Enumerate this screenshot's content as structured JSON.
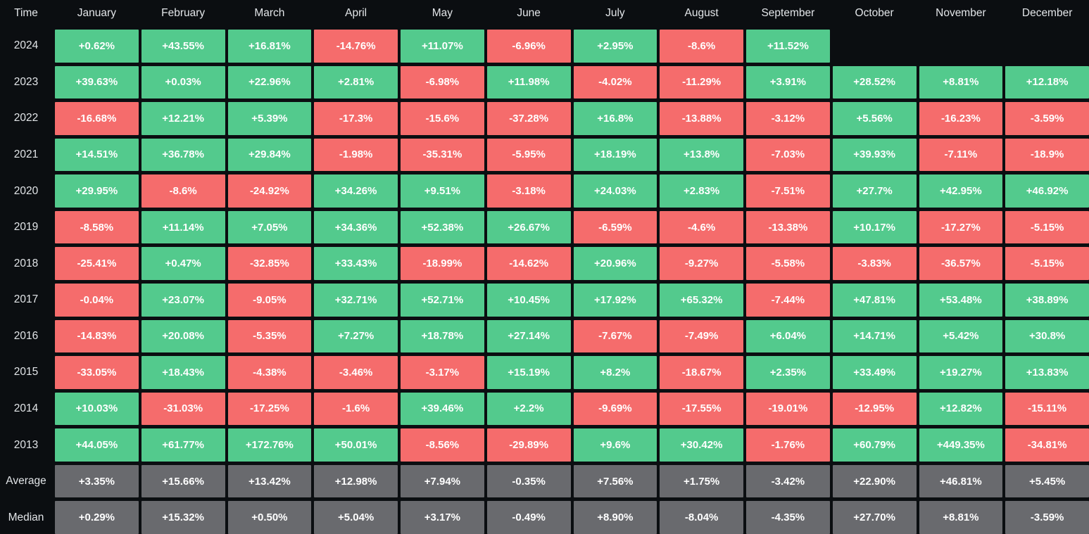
{
  "header": {
    "time_label": "Time",
    "months": [
      "January",
      "February",
      "March",
      "April",
      "May",
      "June",
      "July",
      "August",
      "September",
      "October",
      "November",
      "December"
    ]
  },
  "colors": {
    "background": "#0b0e11",
    "positive": "#53ca8d",
    "negative": "#f56c6c",
    "summary": "#696a6e",
    "cell_text": "#ffffff",
    "header_text": "#e2e5e8"
  },
  "chart_data": {
    "type": "heatmap",
    "value_unit": "percent_monthly_return",
    "columns": [
      "January",
      "February",
      "March",
      "April",
      "May",
      "June",
      "July",
      "August",
      "September",
      "October",
      "November",
      "December"
    ],
    "rows": [
      {
        "label": "2024",
        "kind": "year",
        "values": [
          "+0.62%",
          "+43.55%",
          "+16.81%",
          "-14.76%",
          "+11.07%",
          "-6.96%",
          "+2.95%",
          "-8.6%",
          "+11.52%",
          null,
          null,
          null
        ]
      },
      {
        "label": "2023",
        "kind": "year",
        "values": [
          "+39.63%",
          "+0.03%",
          "+22.96%",
          "+2.81%",
          "-6.98%",
          "+11.98%",
          "-4.02%",
          "-11.29%",
          "+3.91%",
          "+28.52%",
          "+8.81%",
          "+12.18%"
        ]
      },
      {
        "label": "2022",
        "kind": "year",
        "values": [
          "-16.68%",
          "+12.21%",
          "+5.39%",
          "-17.3%",
          "-15.6%",
          "-37.28%",
          "+16.8%",
          "-13.88%",
          "-3.12%",
          "+5.56%",
          "-16.23%",
          "-3.59%"
        ]
      },
      {
        "label": "2021",
        "kind": "year",
        "values": [
          "+14.51%",
          "+36.78%",
          "+29.84%",
          "-1.98%",
          "-35.31%",
          "-5.95%",
          "+18.19%",
          "+13.8%",
          "-7.03%",
          "+39.93%",
          "-7.11%",
          "-18.9%"
        ]
      },
      {
        "label": "2020",
        "kind": "year",
        "values": [
          "+29.95%",
          "-8.6%",
          "-24.92%",
          "+34.26%",
          "+9.51%",
          "-3.18%",
          "+24.03%",
          "+2.83%",
          "-7.51%",
          "+27.7%",
          "+42.95%",
          "+46.92%"
        ]
      },
      {
        "label": "2019",
        "kind": "year",
        "values": [
          "-8.58%",
          "+11.14%",
          "+7.05%",
          "+34.36%",
          "+52.38%",
          "+26.67%",
          "-6.59%",
          "-4.6%",
          "-13.38%",
          "+10.17%",
          "-17.27%",
          "-5.15%"
        ]
      },
      {
        "label": "2018",
        "kind": "year",
        "values": [
          "-25.41%",
          "+0.47%",
          "-32.85%",
          "+33.43%",
          "-18.99%",
          "-14.62%",
          "+20.96%",
          "-9.27%",
          "-5.58%",
          "-3.83%",
          "-36.57%",
          "-5.15%"
        ]
      },
      {
        "label": "2017",
        "kind": "year",
        "values": [
          "-0.04%",
          "+23.07%",
          "-9.05%",
          "+32.71%",
          "+52.71%",
          "+10.45%",
          "+17.92%",
          "+65.32%",
          "-7.44%",
          "+47.81%",
          "+53.48%",
          "+38.89%"
        ]
      },
      {
        "label": "2016",
        "kind": "year",
        "values": [
          "-14.83%",
          "+20.08%",
          "-5.35%",
          "+7.27%",
          "+18.78%",
          "+27.14%",
          "-7.67%",
          "-7.49%",
          "+6.04%",
          "+14.71%",
          "+5.42%",
          "+30.8%"
        ]
      },
      {
        "label": "2015",
        "kind": "year",
        "values": [
          "-33.05%",
          "+18.43%",
          "-4.38%",
          "-3.46%",
          "-3.17%",
          "+15.19%",
          "+8.2%",
          "-18.67%",
          "+2.35%",
          "+33.49%",
          "+19.27%",
          "+13.83%"
        ]
      },
      {
        "label": "2014",
        "kind": "year",
        "values": [
          "+10.03%",
          "-31.03%",
          "-17.25%",
          "-1.6%",
          "+39.46%",
          "+2.2%",
          "-9.69%",
          "-17.55%",
          "-19.01%",
          "-12.95%",
          "+12.82%",
          "-15.11%"
        ]
      },
      {
        "label": "2013",
        "kind": "year",
        "values": [
          "+44.05%",
          "+61.77%",
          "+172.76%",
          "+50.01%",
          "-8.56%",
          "-29.89%",
          "+9.6%",
          "+30.42%",
          "-1.76%",
          "+60.79%",
          "+449.35%",
          "-34.81%"
        ]
      },
      {
        "label": "Average",
        "kind": "summary",
        "values": [
          "+3.35%",
          "+15.66%",
          "+13.42%",
          "+12.98%",
          "+7.94%",
          "-0.35%",
          "+7.56%",
          "+1.75%",
          "-3.42%",
          "+22.90%",
          "+46.81%",
          "+5.45%"
        ]
      },
      {
        "label": "Median",
        "kind": "summary",
        "values": [
          "+0.29%",
          "+15.32%",
          "+0.50%",
          "+5.04%",
          "+3.17%",
          "-0.49%",
          "+8.90%",
          "-8.04%",
          "-4.35%",
          "+27.70%",
          "+8.81%",
          "-3.59%"
        ]
      }
    ]
  }
}
